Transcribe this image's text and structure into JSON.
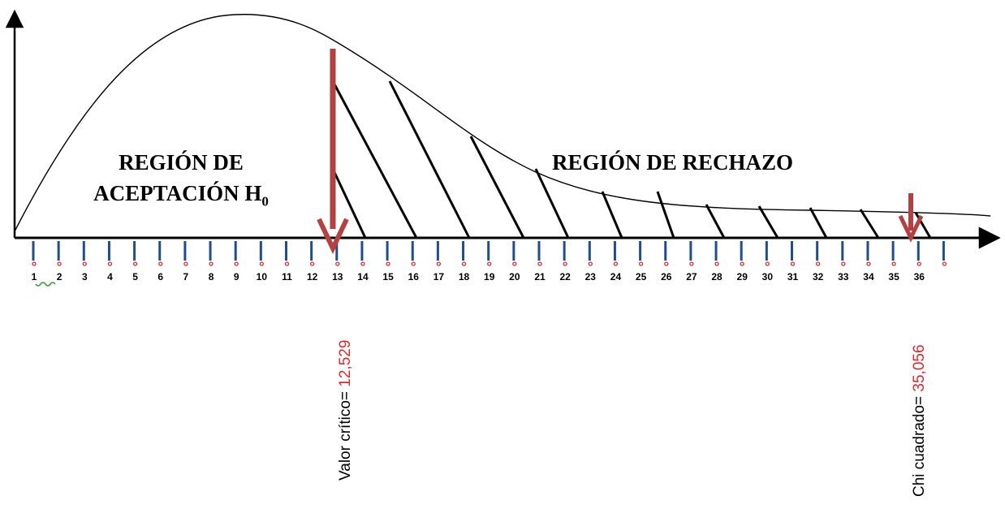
{
  "regions": {
    "acceptance_line1": "REGIÓN DE",
    "acceptance_line2": "ACEPTACIÓN H",
    "acceptance_subscript": "0",
    "rejection": "REGIÓN DE RECHAZO"
  },
  "axis": {
    "tick_labels": [
      "1",
      "2",
      "3",
      "4",
      "5",
      "6",
      "7",
      "8",
      "9",
      "10",
      "11",
      "12",
      "13",
      "14",
      "15",
      "16",
      "17",
      "18",
      "19",
      "20",
      "21",
      "22",
      "23",
      "24",
      "25",
      "26",
      "27",
      "28",
      "29",
      "30",
      "31",
      "32",
      "33",
      "34",
      "35",
      "36"
    ]
  },
  "markers": {
    "critical": {
      "label": "Valor crítico= ",
      "value": "12,529"
    },
    "statistic": {
      "label": "Chi cuadrado= ",
      "value": "35,056"
    }
  },
  "colors": {
    "arrow": "#b5403f",
    "value_text": "#e0282a",
    "tick_dot": "#e0282a",
    "tick_line": "#1f4e8c",
    "curve": "#000000"
  }
}
